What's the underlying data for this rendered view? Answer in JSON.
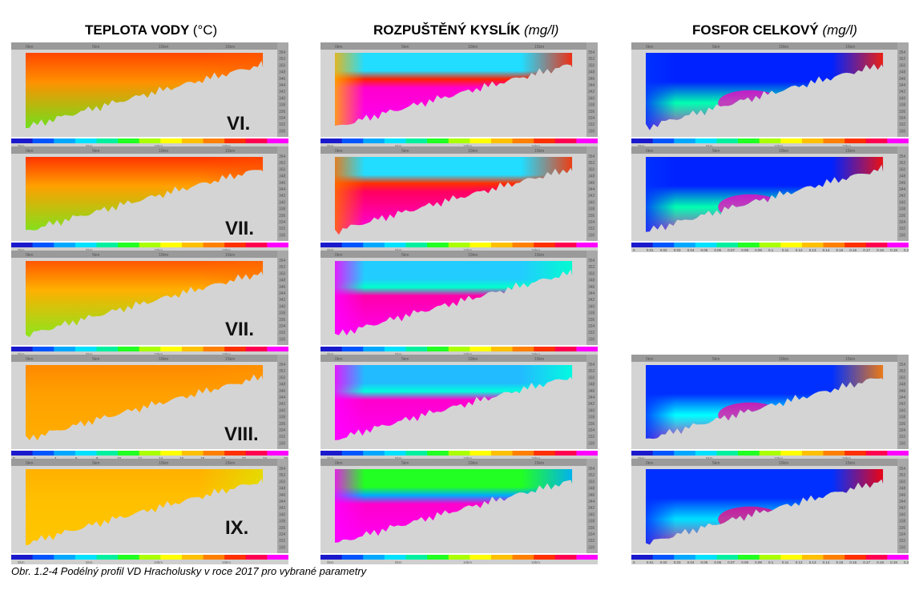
{
  "columns": [
    {
      "title": "TEPLOTA VODY",
      "unit": "(°C)",
      "unit_style": "normal"
    },
    {
      "title": "ROZPUŠTĚNÝ KYSLÍK",
      "unit": "(mg/l)",
      "unit_style": "italic"
    },
    {
      "title": "FOSFOR CELKOVÝ",
      "unit": "(mg/l)",
      "unit_style": "italic"
    }
  ],
  "caption": "Obr. 1.2-4 Podélný profil VD Hracholusky v roce 2017 pro vybrané parametry",
  "months": [
    "VI.",
    "VII.",
    "VII.",
    "VIII.",
    "IX."
  ],
  "chart_data": {
    "type": "heatmap",
    "description_x": "distance along reservoir (km)",
    "x_ticks": [
      "0km",
      "5km",
      "10km",
      "15km"
    ],
    "y_ticks": [
      "354",
      "352",
      "350",
      "348",
      "346",
      "344",
      "342",
      "340",
      "338",
      "336",
      "334",
      "332",
      "330"
    ],
    "y_range": [
      330,
      355
    ],
    "colorbar_temperature": [
      "0",
      "2",
      "4",
      "6",
      "8",
      "10",
      "12",
      "14",
      "16",
      "18",
      "20",
      "22",
      "24",
      "26"
    ],
    "colorbar_phosphorus": [
      "0",
      "0.01",
      "0.02",
      "0.03",
      "0.04",
      "0.05",
      "0.06",
      "0.07",
      "0.08",
      "0.09",
      "0.1",
      "0.11",
      "0.12",
      "0.13",
      "0.14",
      "0.15",
      "0.16",
      "0.17",
      "0.18",
      "0.19",
      "0.2"
    ],
    "palette": [
      "#1a1acc",
      "#0055ff",
      "#00a8ff",
      "#00e0ff",
      "#00f0a0",
      "#22ff22",
      "#aaff00",
      "#ffff00",
      "#ffc000",
      "#ff8000",
      "#ff3000",
      "#ff0050",
      "#ff00ff"
    ],
    "panels": [
      {
        "param": "temperature",
        "month": "VI.",
        "kind": "surface_hot",
        "surface": "#ff4400",
        "mid": "#ff9000",
        "deep": "#55ee22",
        "upstream": "#ff6000"
      },
      {
        "param": "temperature",
        "month": "VII.",
        "kind": "surface_hot",
        "surface": "#ff3000",
        "mid": "#ffa000",
        "deep": "#66ee22",
        "upstream": "#ff5000"
      },
      {
        "param": "temperature",
        "month": "VII.",
        "kind": "surface_hot",
        "surface": "#ff5500",
        "mid": "#ffb000",
        "deep": "#77ee22",
        "upstream": "#ff7000"
      },
      {
        "param": "temperature",
        "month": "VIII.",
        "kind": "uniform",
        "surface": "#ff8800",
        "mid": "#ffa000",
        "deep": "#ffb000",
        "upstream": "#ff9800"
      },
      {
        "param": "temperature",
        "month": "IX.",
        "kind": "uniform",
        "surface": "#ffb000",
        "mid": "#ffbf00",
        "deep": "#ffc800",
        "upstream": "#ccff00"
      },
      {
        "param": "oxygen",
        "month": "VI.",
        "kind": "oxy",
        "surface": "#22ddff",
        "mid": "#ff00cc",
        "deep": "#ff00ff",
        "upstream": "#ff2000",
        "left": "#ffb000"
      },
      {
        "param": "oxygen",
        "month": "VII.",
        "kind": "oxy",
        "surface": "#22ddff",
        "mid": "#ff0060",
        "deep": "#ff00ff",
        "upstream": "#ff3000",
        "left": "#ff7000"
      },
      {
        "param": "oxygen",
        "month": "VII.",
        "kind": "oxy",
        "surface": "#22ccff",
        "mid": "#ff00aa",
        "deep": "#ff00ff",
        "upstream": "#00ffcc",
        "left": "#ff00ff"
      },
      {
        "param": "oxygen",
        "month": "VIII.",
        "kind": "oxy",
        "surface": "#22bbff",
        "mid": "#ff00cc",
        "deep": "#ff00ff",
        "upstream": "#00ffdd",
        "left": "#ff00ff"
      },
      {
        "param": "oxygen",
        "month": "IX.",
        "kind": "oxy",
        "surface": "#22ff22",
        "mid": "#ff00cc",
        "deep": "#ff00ff",
        "upstream": "#00aaff",
        "left": "#ff00ff"
      },
      {
        "param": "phosphorus",
        "month": "VI.",
        "kind": "phos",
        "surface": "#0022ff",
        "mid": "#00ffb0",
        "deep": "#ff00c0",
        "upstream": "#ff2000",
        "left": "#0033ff"
      },
      {
        "param": "phosphorus",
        "month": "VII.",
        "kind": "phos",
        "surface": "#0022ff",
        "mid": "#00ffb0",
        "deep": "#ff00c0",
        "upstream": "#ff1000",
        "left": "#0033ff"
      },
      {
        "param": "phosphorus",
        "month": "VIII.",
        "kind": "phos",
        "surface": "#0030ff",
        "mid": "#00ffff",
        "deep": "#ff00a0",
        "upstream": "#ff8000",
        "left": "#0030ff"
      },
      {
        "param": "phosphorus",
        "month": "IX.",
        "kind": "phos",
        "surface": "#0030ff",
        "mid": "#00e0ff",
        "deep": "#ff0080",
        "upstream": "#ff0000",
        "left": "#0030ff"
      }
    ]
  }
}
